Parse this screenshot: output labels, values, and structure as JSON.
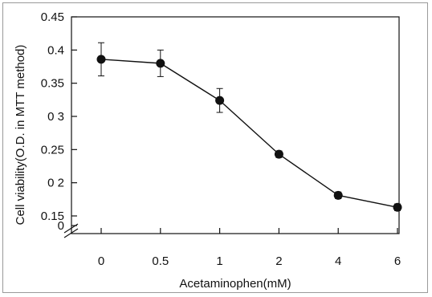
{
  "chart_data": {
    "type": "line",
    "title": "",
    "xlabel": "Acetaminophen(mM)",
    "ylabel": "Cell viability(O.D. in MTT method)",
    "categories": [
      "0",
      "0.5",
      "1",
      "2",
      "4",
      "6"
    ],
    "series": [
      {
        "values": [
          0.386,
          0.38,
          0.324,
          0.243,
          0.181,
          0.163
        ],
        "error": [
          0.025,
          0.02,
          0.018,
          0.005,
          0.005,
          0.005
        ]
      }
    ],
    "y_ticks": [
      "0",
      "0.15",
      "0 2",
      "0.25",
      "0 3",
      "0.35",
      "0.4",
      "0.45"
    ],
    "ylim": [
      0.15,
      0.45
    ],
    "y_break": true,
    "grid": false,
    "legend": "none",
    "colors": {
      "line": "#111111",
      "marker": "#111111"
    }
  }
}
